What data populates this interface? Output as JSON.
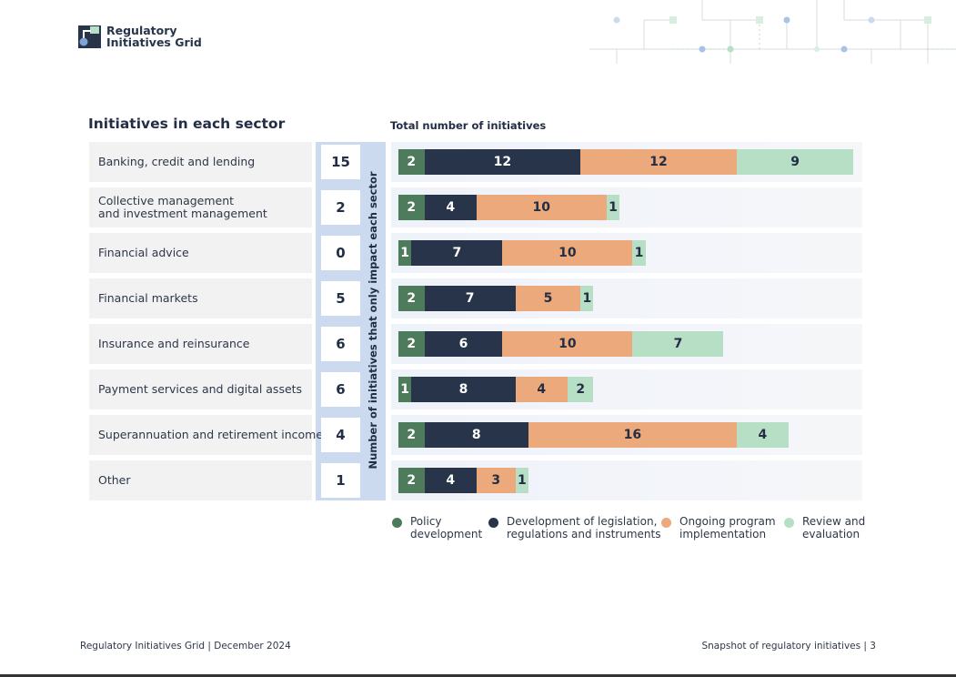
{
  "header": {
    "logo_line1": "Regulatory",
    "logo_line2": "Initiatives Grid"
  },
  "section_title": "Initiatives in each sector",
  "colors": {
    "policy": "#4e7b5c",
    "legislation": "#27344a",
    "ongoing": "#eca97c",
    "review": "#b6dfc5",
    "text_dark": "#232e44"
  },
  "chart_data": {
    "type": "bar",
    "orientation": "horizontal",
    "stacked": true,
    "title": "Total number of initiatives",
    "side_column_label": "Number of initiatives that only impact each sector",
    "categories": [
      "Banking, credit and lending",
      "Collective management\nand investment management",
      "Financial advice",
      "Financial markets",
      "Insurance and reinsurance",
      "Payment services and digital assets",
      "Superannuation and retirement income",
      "Other"
    ],
    "only_impact": [
      15,
      2,
      0,
      5,
      6,
      6,
      4,
      1
    ],
    "series": [
      {
        "name": "Policy development",
        "color_key": "policy",
        "values": [
          2,
          2,
          1,
          2,
          2,
          1,
          2,
          2
        ]
      },
      {
        "name": "Development of legislation, regulations and instruments",
        "color_key": "legislation",
        "values": [
          12,
          4,
          7,
          7,
          6,
          8,
          8,
          4
        ]
      },
      {
        "name": "Ongoing program implementation",
        "color_key": "ongoing",
        "values": [
          12,
          10,
          10,
          5,
          10,
          4,
          16,
          3
        ]
      },
      {
        "name": "Review and evaluation",
        "color_key": "review",
        "values": [
          9,
          1,
          1,
          1,
          7,
          2,
          4,
          1
        ]
      }
    ],
    "legend_position": "bottom"
  },
  "legend": [
    {
      "label": "Policy\ndevelopment",
      "color_key": "policy"
    },
    {
      "label": "Development of legislation,\nregulations and instruments",
      "color_key": "legislation"
    },
    {
      "label": "Ongoing program\nimplementation",
      "color_key": "ongoing"
    },
    {
      "label": "Review and\nevaluation",
      "color_key": "review"
    }
  ],
  "footer": {
    "left": "Regulatory Initiatives Grid | December 2024",
    "right": "Snapshot of regulatory initiatives | 3"
  }
}
